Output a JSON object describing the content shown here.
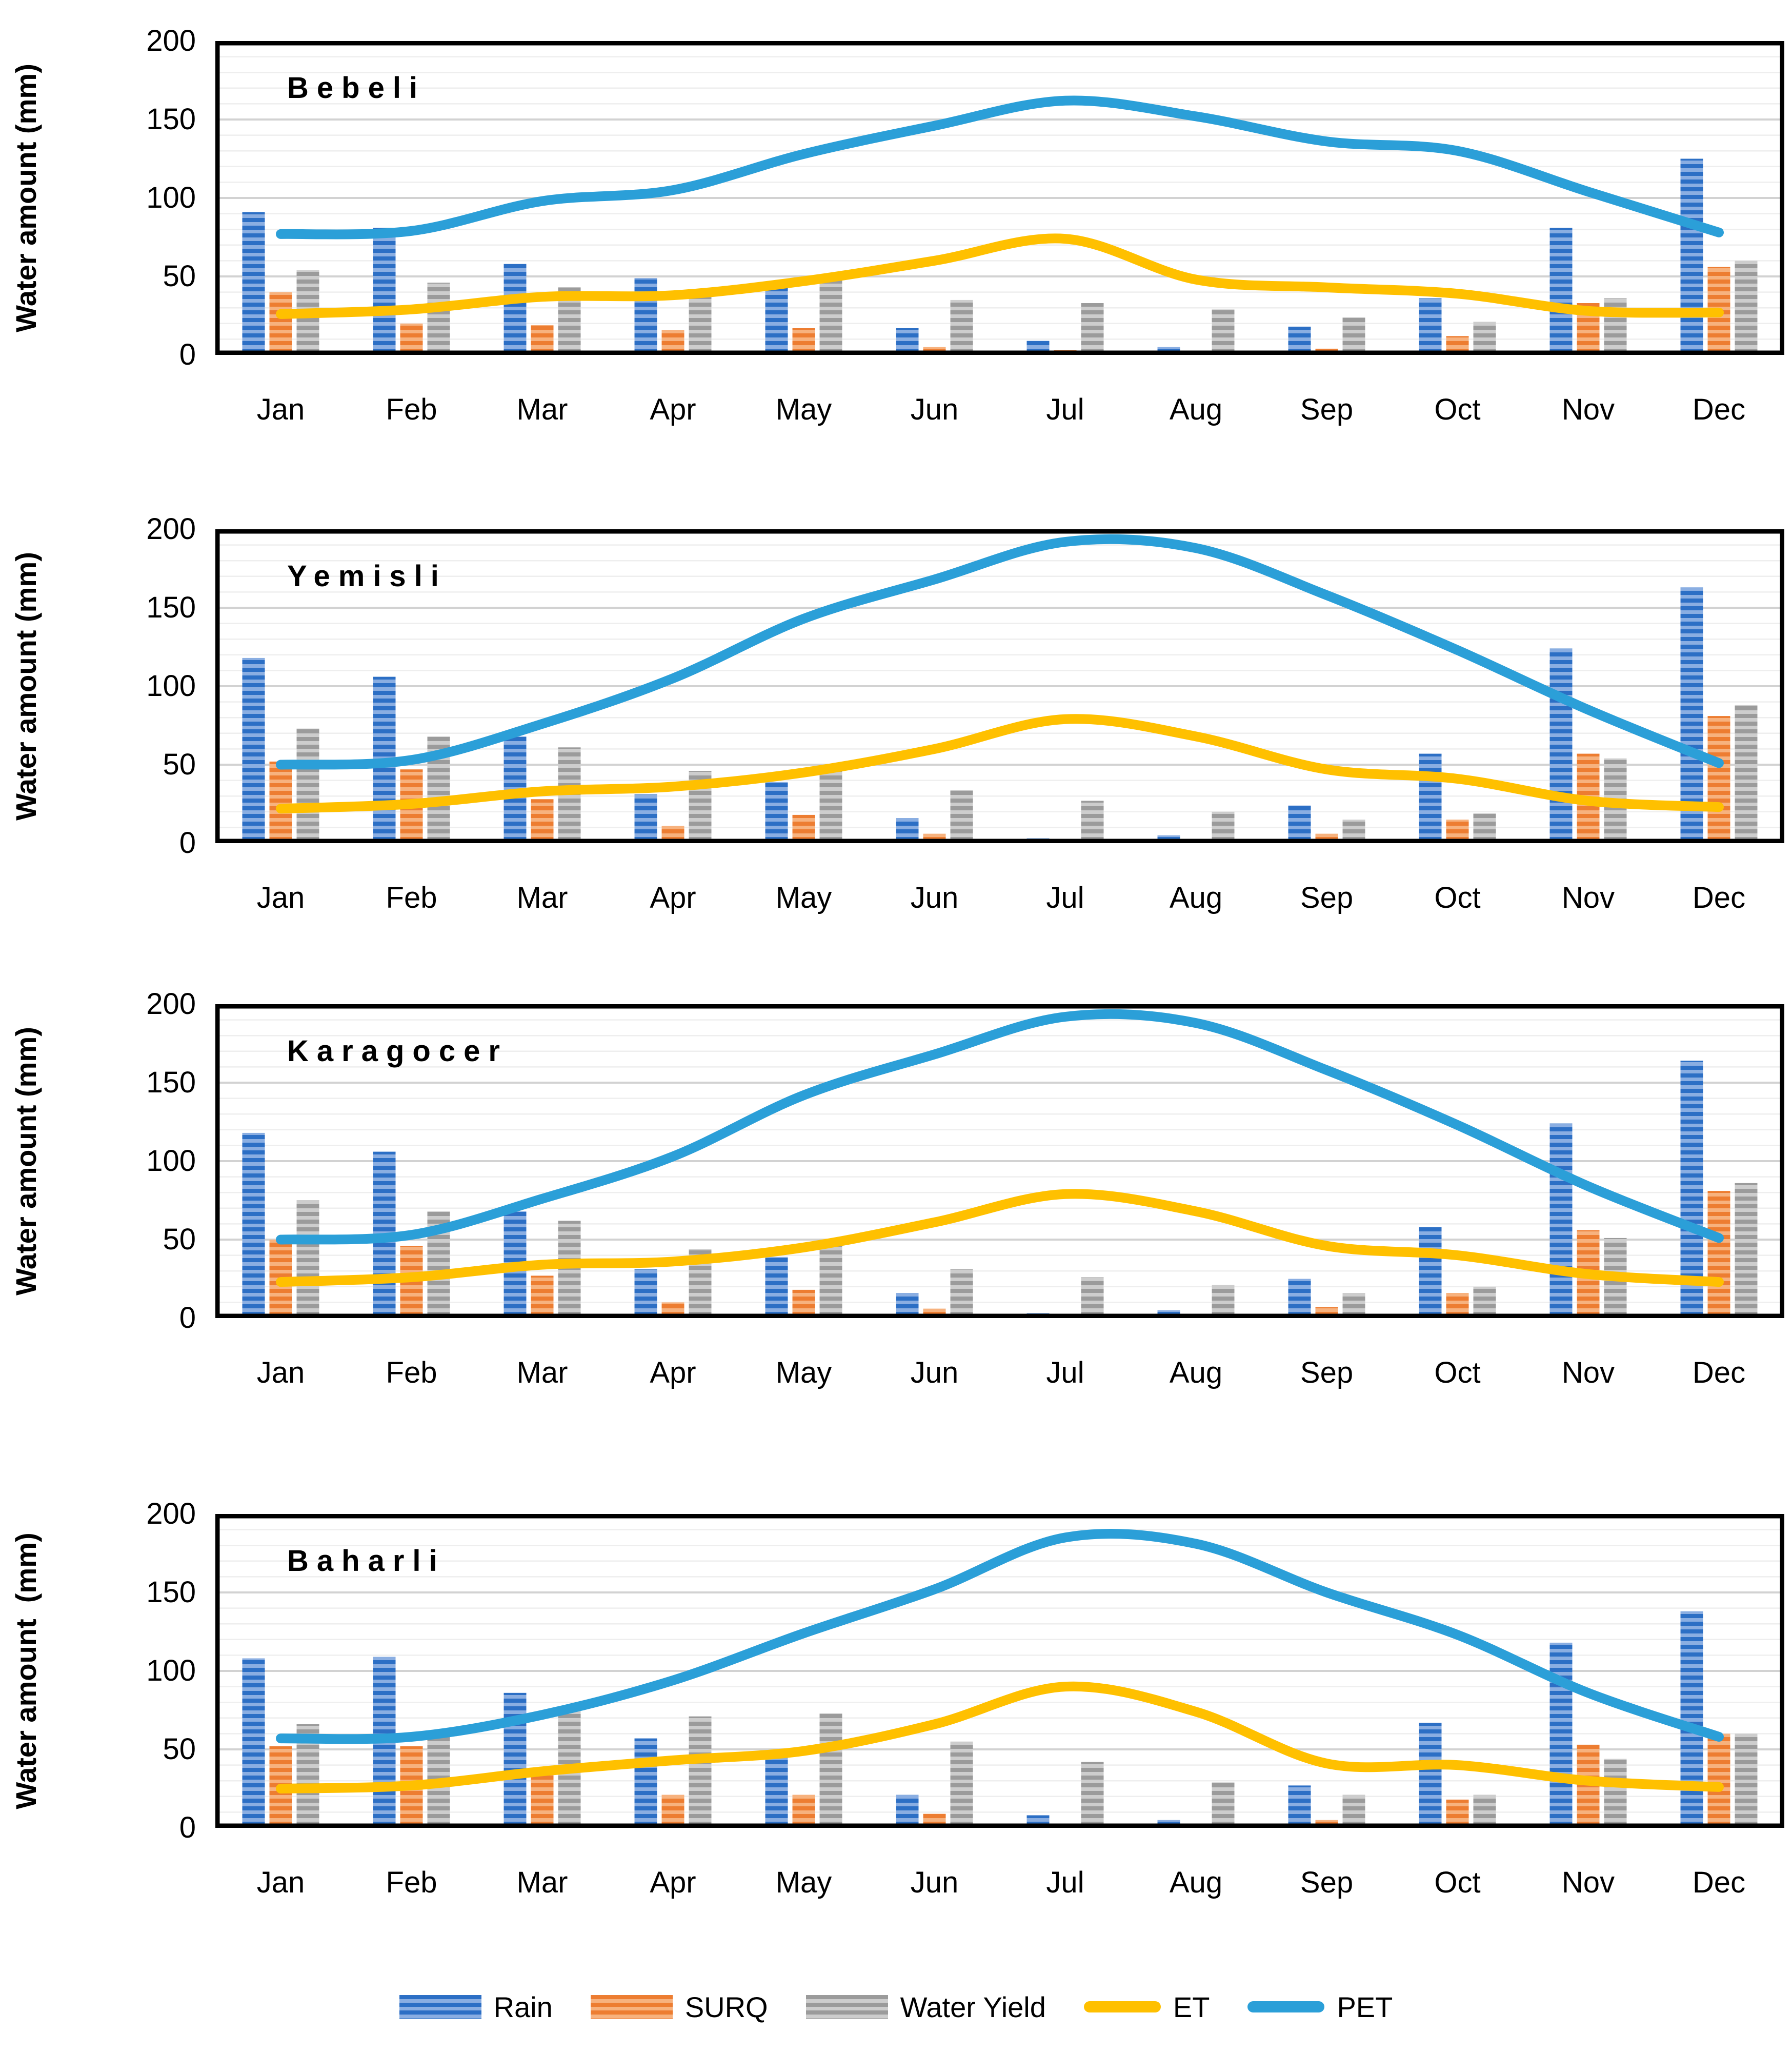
{
  "page": {
    "background": "#ffffff"
  },
  "months": [
    "Jan",
    "Feb",
    "Mar",
    "Apr",
    "May",
    "Jun",
    "Jul",
    "Aug",
    "Sep",
    "Oct",
    "Nov",
    "Dec"
  ],
  "y_axis": {
    "ticks": [
      0,
      50,
      100,
      150,
      200
    ],
    "max": 200
  },
  "style": {
    "grid_minor": "#EEEEEE",
    "grid_major": "#D2D2D2",
    "plot_border": "#000000",
    "text_color": "#000000"
  },
  "legend": {
    "items": [
      {
        "label": "Rain",
        "kind": "bar",
        "color_dark": "#2C6FC5",
        "color_light": "#8AAEE2"
      },
      {
        "label": "SURQ",
        "kind": "bar",
        "color_dark": "#ED7D31",
        "color_light": "#F7B27E"
      },
      {
        "label": "Water Yield",
        "kind": "bar",
        "color_dark": "#9B9B9B",
        "color_light": "#CDCDCD"
      },
      {
        "label": "ET",
        "kind": "line",
        "color": "#FFC000"
      },
      {
        "label": "PET",
        "kind": "line",
        "color": "#2B9FD8"
      }
    ]
  },
  "chart_data": [
    {
      "type": "bar+line",
      "title": "Bebeli",
      "ylabel": "Water amount (mm)",
      "categories": [
        "Jan",
        "Feb",
        "Mar",
        "Apr",
        "May",
        "Jun",
        "Jul",
        "Aug",
        "Sep",
        "Oct",
        "Nov",
        "Dec"
      ],
      "ylim": [
        0,
        200
      ],
      "yticks": [
        0,
        50,
        100,
        150,
        200
      ],
      "grid": "horizontal, minor every 10, major every 50",
      "legend_position": "shared bottom",
      "series": [
        {
          "name": "Rain",
          "kind": "bar",
          "color_dark": "#2C6FC5",
          "color_light": "#8AAEE2",
          "values": [
            91,
            81,
            58,
            49,
            46,
            17,
            9,
            5,
            18,
            36,
            81,
            125
          ]
        },
        {
          "name": "SURQ",
          "kind": "bar",
          "color_dark": "#ED7D31",
          "color_light": "#F7B27E",
          "values": [
            40,
            20,
            19,
            16,
            17,
            5,
            3,
            1,
            4,
            12,
            33,
            56
          ]
        },
        {
          "name": "Water Yield",
          "kind": "bar",
          "color_dark": "#9B9B9B",
          "color_light": "#CDCDCD",
          "values": [
            54,
            46,
            43,
            39,
            48,
            35,
            33,
            29,
            24,
            21,
            36,
            60
          ]
        },
        {
          "name": "ET",
          "kind": "line",
          "color": "#FFC000",
          "values": [
            26,
            29,
            37,
            38,
            47,
            60,
            74,
            48,
            43,
            39,
            28,
            27
          ]
        },
        {
          "name": "PET",
          "kind": "line",
          "color": "#2B9FD8",
          "values": [
            77,
            79,
            98,
            105,
            128,
            146,
            162,
            152,
            136,
            130,
            104,
            78
          ]
        }
      ]
    },
    {
      "type": "bar+line",
      "title": "Yemisli",
      "ylabel": "Water amount (mm)",
      "categories": [
        "Jan",
        "Feb",
        "Mar",
        "Apr",
        "May",
        "Jun",
        "Jul",
        "Aug",
        "Sep",
        "Oct",
        "Nov",
        "Dec"
      ],
      "ylim": [
        0,
        200
      ],
      "yticks": [
        0,
        50,
        100,
        150,
        200
      ],
      "grid": "horizontal, minor every 10, major every 50",
      "legend_position": "shared bottom",
      "series": [
        {
          "name": "Rain",
          "kind": "bar",
          "color_dark": "#2C6FC5",
          "color_light": "#8AAEE2",
          "values": [
            118,
            106,
            68,
            31,
            39,
            16,
            3,
            5,
            24,
            57,
            124,
            163
          ]
        },
        {
          "name": "SURQ",
          "kind": "bar",
          "color_dark": "#ED7D31",
          "color_light": "#F7B27E",
          "values": [
            52,
            47,
            28,
            11,
            18,
            6,
            1,
            1,
            6,
            15,
            57,
            81
          ]
        },
        {
          "name": "Water Yield",
          "kind": "bar",
          "color_dark": "#9B9B9B",
          "color_light": "#CDCDCD",
          "values": [
            73,
            68,
            61,
            46,
            47,
            34,
            27,
            20,
            15,
            19,
            54,
            88
          ]
        },
        {
          "name": "ET",
          "kind": "line",
          "color": "#FFC000",
          "values": [
            22,
            25,
            33,
            36,
            45,
            60,
            79,
            68,
            47,
            41,
            27,
            23
          ]
        },
        {
          "name": "PET",
          "kind": "line",
          "color": "#2B9FD8",
          "values": [
            50,
            53,
            76,
            105,
            143,
            168,
            192,
            188,
            158,
            123,
            85,
            51
          ]
        }
      ]
    },
    {
      "type": "bar+line",
      "title": "Karagocer",
      "ylabel": "Water amount (mm)",
      "categories": [
        "Jan",
        "Feb",
        "Mar",
        "Apr",
        "May",
        "Jun",
        "Jul",
        "Aug",
        "Sep",
        "Oct",
        "Nov",
        "Dec"
      ],
      "ylim": [
        0,
        200
      ],
      "yticks": [
        0,
        50,
        100,
        150,
        200
      ],
      "grid": "horizontal, minor every 10, major every 50",
      "legend_position": "shared bottom",
      "series": [
        {
          "name": "Rain",
          "kind": "bar",
          "color_dark": "#2C6FC5",
          "color_light": "#8AAEE2",
          "values": [
            118,
            106,
            68,
            31,
            39,
            16,
            3,
            5,
            25,
            58,
            124,
            164
          ]
        },
        {
          "name": "SURQ",
          "kind": "bar",
          "color_dark": "#ED7D31",
          "color_light": "#F7B27E",
          "values": [
            50,
            46,
            27,
            10,
            18,
            6,
            1,
            1,
            7,
            16,
            56,
            81
          ]
        },
        {
          "name": "Water Yield",
          "kind": "bar",
          "color_dark": "#9B9B9B",
          "color_light": "#CDCDCD",
          "values": [
            75,
            68,
            62,
            44,
            46,
            31,
            26,
            21,
            16,
            20,
            51,
            86
          ]
        },
        {
          "name": "ET",
          "kind": "line",
          "color": "#FFC000",
          "values": [
            23,
            26,
            34,
            36,
            45,
            61,
            79,
            68,
            46,
            40,
            28,
            23
          ]
        },
        {
          "name": "PET",
          "kind": "line",
          "color": "#2B9FD8",
          "values": [
            50,
            53,
            76,
            103,
            142,
            168,
            192,
            188,
            158,
            123,
            84,
            51
          ]
        }
      ]
    },
    {
      "type": "bar+line",
      "title": "Baharli",
      "ylabel": "Water amount  (mm)",
      "categories": [
        "Jan",
        "Feb",
        "Mar",
        "Apr",
        "May",
        "Jun",
        "Jul",
        "Aug",
        "Sep",
        "Oct",
        "Nov",
        "Dec"
      ],
      "ylim": [
        0,
        200
      ],
      "yticks": [
        0,
        50,
        100,
        150,
        200
      ],
      "grid": "horizontal, minor every 10, major every 50",
      "legend_position": "shared bottom",
      "series": [
        {
          "name": "Rain",
          "kind": "bar",
          "color_dark": "#2C6FC5",
          "color_light": "#8AAEE2",
          "values": [
            108,
            109,
            86,
            57,
            46,
            21,
            8,
            5,
            27,
            67,
            118,
            138
          ]
        },
        {
          "name": "SURQ",
          "kind": "bar",
          "color_dark": "#ED7D31",
          "color_light": "#F7B27E",
          "values": [
            52,
            52,
            38,
            21,
            21,
            9,
            2,
            1,
            5,
            18,
            53,
            60
          ]
        },
        {
          "name": "Water Yield",
          "kind": "bar",
          "color_dark": "#9B9B9B",
          "color_light": "#CDCDCD",
          "values": [
            66,
            60,
            77,
            71,
            73,
            55,
            42,
            29,
            21,
            21,
            44,
            60
          ]
        },
        {
          "name": "ET",
          "kind": "line",
          "color": "#FFC000",
          "values": [
            25,
            27,
            36,
            43,
            49,
            66,
            90,
            74,
            41,
            40,
            30,
            26
          ]
        },
        {
          "name": "PET",
          "kind": "line",
          "color": "#2B9FD8",
          "values": [
            57,
            58,
            72,
            94,
            124,
            152,
            185,
            181,
            150,
            123,
            86,
            58
          ]
        }
      ]
    }
  ],
  "layout_tops": [
    80,
    1032,
    1958,
    2952
  ]
}
